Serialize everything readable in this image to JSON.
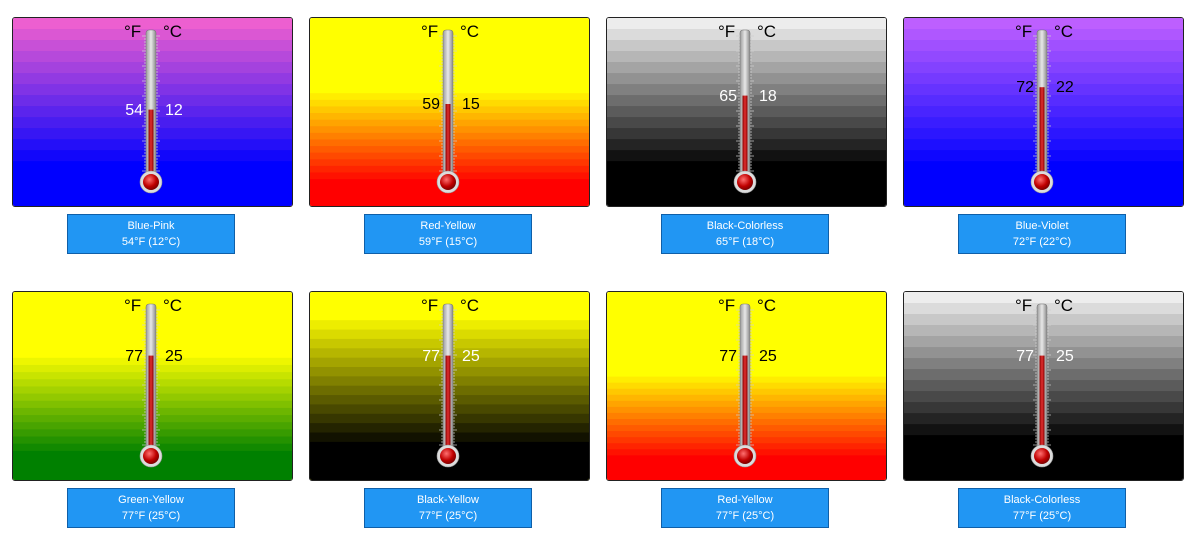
{
  "units": {
    "fahrenheit": "°F",
    "celsius": "°C"
  },
  "thermometers": [
    {
      "title": "Blue-Pink",
      "f": "54",
      "c": "12",
      "reading": "54°F (12°C)",
      "level": 0.46,
      "top_color": "#ff66cc",
      "bottom_color": "#0000ff",
      "split": 0.0,
      "text_color": "#ffffff"
    },
    {
      "title": "Red-Yellow",
      "f": "59",
      "c": "15",
      "reading": "59°F (15°C)",
      "level": 0.5,
      "top_color": "#ffff00",
      "bottom_color": "#ff0000",
      "split": 0.4,
      "text_color": "#000000"
    },
    {
      "title": "Black-Colorless",
      "f": "65",
      "c": "18",
      "reading": "65°F (18°C)",
      "level": 0.56,
      "top_color": "#ffffff",
      "bottom_color": "#000000",
      "split": 0.0,
      "text_color": "#ffffff"
    },
    {
      "title": "Blue-Violet",
      "f": "72",
      "c": "22",
      "reading": "72°F (22°C)",
      "level": 0.62,
      "top_color": "#cc66ff",
      "bottom_color": "#0000ff",
      "split": 0.0,
      "text_color": "#000000"
    },
    {
      "title": "Green-Yellow",
      "f": "77",
      "c": "25",
      "reading": "77°F (25°C)",
      "level": 0.66,
      "top_color": "#ffff00",
      "bottom_color": "#008000",
      "split": 0.35,
      "text_color": "#000000"
    },
    {
      "title": "Black-Yellow",
      "f": "77",
      "c": "25",
      "reading": "77°F (25°C)",
      "level": 0.66,
      "top_color": "#ffff00",
      "bottom_color": "#000000",
      "split": 0.15,
      "text_color": "#ffffff"
    },
    {
      "title": "Red-Yellow",
      "f": "77",
      "c": "25",
      "reading": "77°F (25°C)",
      "level": 0.66,
      "top_color": "#ffff00",
      "bottom_color": "#ff0000",
      "split": 0.45,
      "text_color": "#000000"
    },
    {
      "title": "Black-Colorless",
      "f": "77",
      "c": "25",
      "reading": "77°F (25°C)",
      "level": 0.66,
      "top_color": "#ffffff",
      "bottom_color": "#000000",
      "split": 0.0,
      "text_color": "#ffffff"
    }
  ]
}
